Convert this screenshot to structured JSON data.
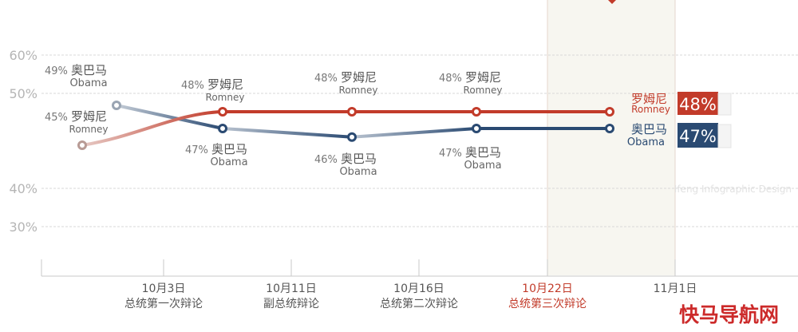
{
  "chart_data": {
    "type": "line",
    "ylabels": [
      "60%",
      "50%",
      "40%",
      "30%"
    ],
    "y_ticks": [
      60,
      50,
      40,
      30
    ],
    "x_ticks": [
      {
        "date": "10月3日",
        "event": "总统第一次辩论",
        "highlight": false
      },
      {
        "date": "10月11日",
        "event": "副总统辩论",
        "highlight": false
      },
      {
        "date": "10月16日",
        "event": "总统第二次辩论",
        "highlight": false
      },
      {
        "date": "10月22日",
        "event": "总统第三次辩论",
        "highlight": true
      },
      {
        "date": "11月1日",
        "event": "",
        "highlight": false
      }
    ],
    "series": [
      {
        "key": "obama",
        "name_cn": "奥巴马",
        "name_en": "Obama",
        "color": "#2a4a72",
        "values": [
          49,
          47,
          46,
          47,
          47
        ],
        "point_labels": [
          {
            "pct": "49%",
            "cn": "奥巴马",
            "en": "Obama"
          },
          {
            "pct": "47%",
            "cn": "奥巴马",
            "en": "Obama"
          },
          {
            "pct": "46%",
            "cn": "奥巴马",
            "en": "Obama"
          },
          {
            "pct": "47%",
            "cn": "奥巴马",
            "en": "Obama"
          },
          {
            "pct": "",
            "cn": "奥巴马",
            "en": "Obama"
          }
        ],
        "final": "47%"
      },
      {
        "key": "romney",
        "name_cn": "罗姆尼",
        "name_en": "Romney",
        "color": "#c23b2a",
        "values": [
          45,
          48,
          48,
          48,
          48
        ],
        "point_labels": [
          {
            "pct": "45%",
            "cn": "罗姆尼",
            "en": "Romney"
          },
          {
            "pct": "48%",
            "cn": "罗姆尼",
            "en": "Romney"
          },
          {
            "pct": "48%",
            "cn": "罗姆尼",
            "en": "Romney"
          },
          {
            "pct": "48%",
            "cn": "罗姆尼",
            "en": "Romney"
          },
          {
            "pct": "",
            "cn": "罗姆尼",
            "en": "Romney"
          }
        ],
        "final": "48%"
      }
    ],
    "watermark": "Ifeng Infographic Design",
    "logo": "快马导航网",
    "colors": {
      "obama": "#2a4a72",
      "romney": "#c23b2a",
      "grid": "#d8d8d8",
      "highlight_band": "#f7f6f0",
      "highlight_border": "#e6d6cc"
    }
  }
}
